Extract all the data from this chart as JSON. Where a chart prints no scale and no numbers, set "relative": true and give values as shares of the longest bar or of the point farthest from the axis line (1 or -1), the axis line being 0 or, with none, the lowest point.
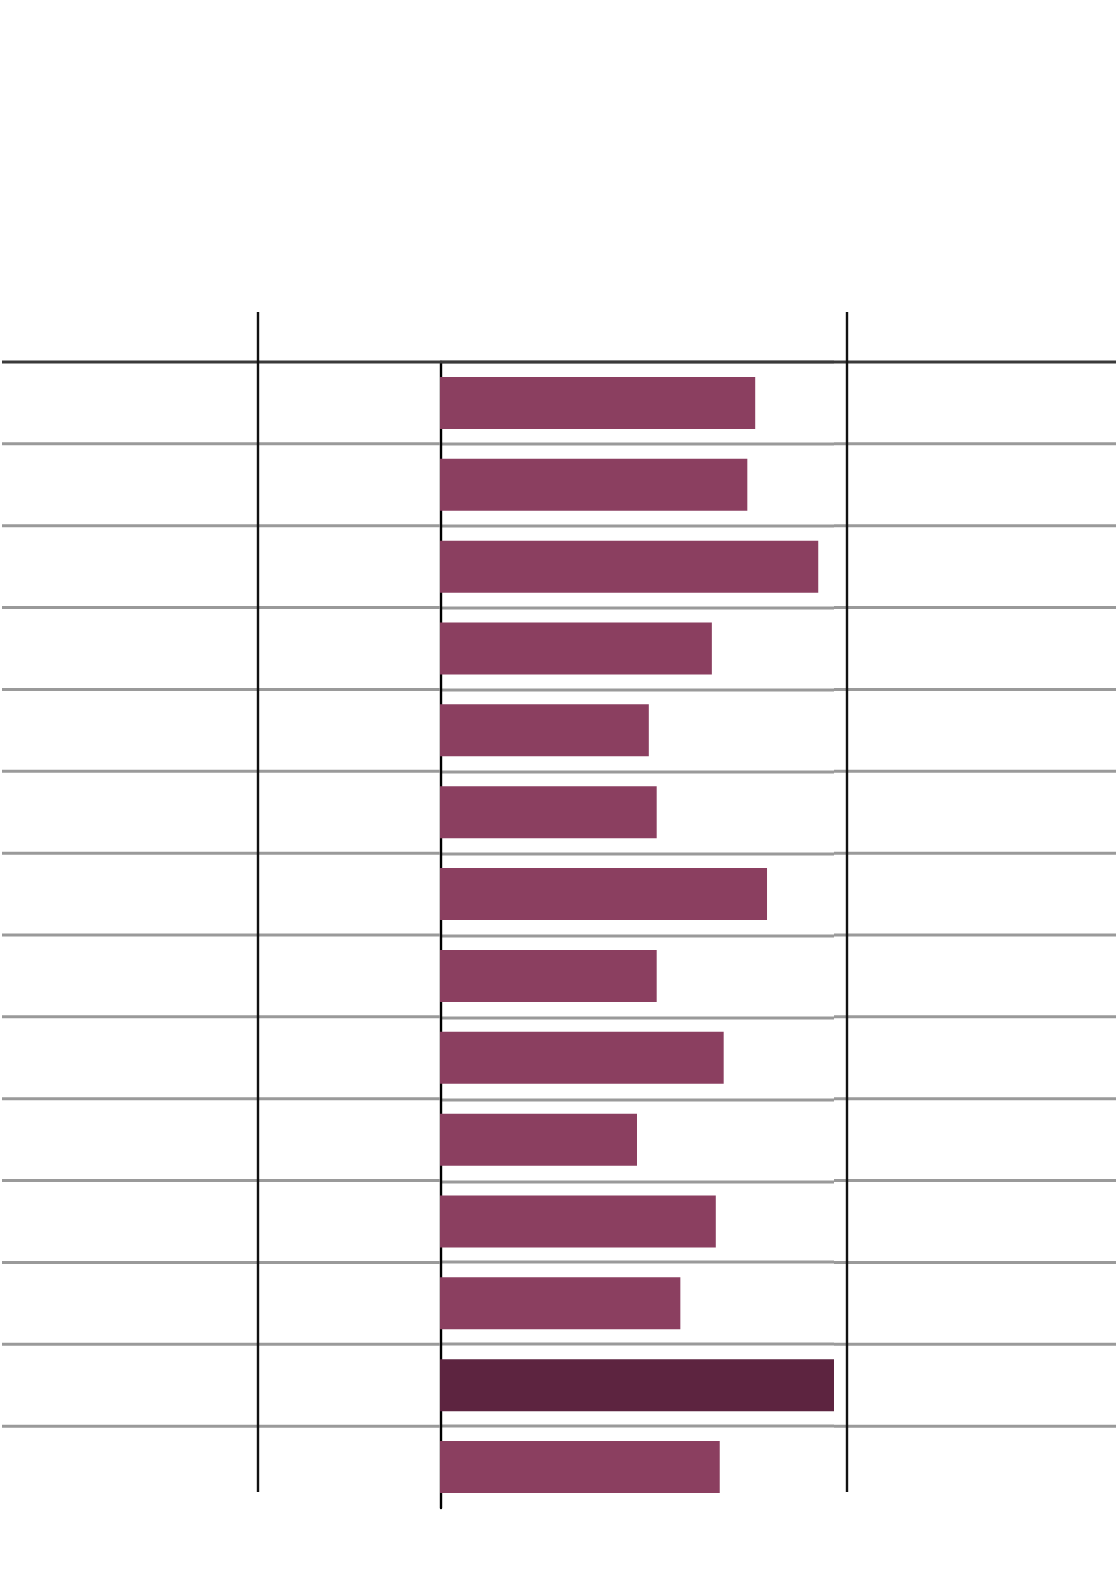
{
  "chart_data": {
    "type": "bar",
    "orientation": "horizontal",
    "relative": true,
    "categories": [
      null,
      null,
      null,
      null,
      null,
      null,
      null,
      null,
      null,
      null,
      null,
      null,
      null,
      null
    ],
    "values": [
      0.8,
      0.78,
      0.96,
      0.69,
      0.53,
      0.55,
      0.83,
      0.55,
      0.72,
      0.5,
      0.7,
      0.61,
      1,
      0.71
    ],
    "colors": [
      "#8b3f60",
      "#8b3f60",
      "#8b3f60",
      "#8b3f60",
      "#8b3f60",
      "#8b3f60",
      "#8b3f60",
      "#8b3f60",
      "#8b3f60",
      "#8b3f60",
      "#8b3f60",
      "#8b3f60",
      "#5d2440",
      "#8b3f60"
    ],
    "grid": "y"
  }
}
